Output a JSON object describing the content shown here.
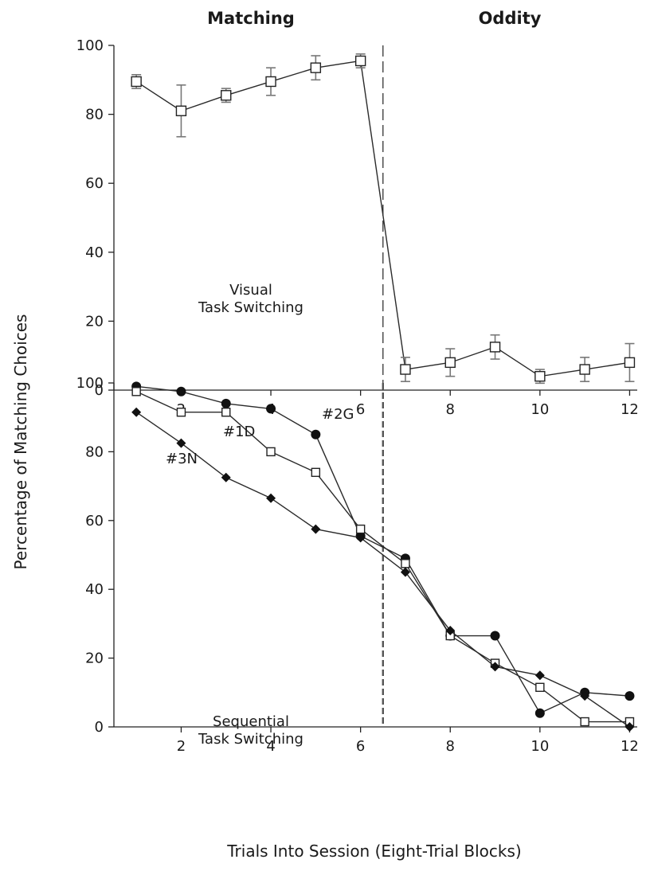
{
  "phase_labels": {
    "left": "Matching",
    "right": "Oddity"
  },
  "ylabel": "Percentage of Matching Choices",
  "xlabel": "Trials Into Session (Eight-Trial Blocks)",
  "chart_data": [
    {
      "type": "line",
      "panel": "top",
      "annotation": [
        "Visual",
        "Task Switching"
      ],
      "xlim": [
        0.5,
        12.5
      ],
      "ylim": [
        0,
        100
      ],
      "x_ticks": [
        2,
        4,
        6,
        8,
        10,
        12
      ],
      "y_ticks": [
        0,
        20,
        40,
        60,
        80,
        100
      ],
      "divider_x": 6.5,
      "x": [
        1,
        2,
        3,
        4,
        5,
        6,
        7,
        8,
        9,
        10,
        11,
        12
      ],
      "series": [
        {
          "marker": "open-square",
          "values": [
            89.5,
            81,
            85.5,
            89.5,
            93.5,
            95.5,
            6,
            8,
            12.5,
            4,
            6,
            8
          ],
          "error": [
            2,
            7.5,
            2,
            4,
            3.5,
            2,
            3.5,
            4,
            3.5,
            2,
            3.5,
            5.5
          ]
        }
      ]
    },
    {
      "type": "line",
      "panel": "bottom",
      "annotation": [
        "Sequential",
        "Task Switching"
      ],
      "xlim": [
        0.5,
        12.5
      ],
      "ylim": [
        0,
        100
      ],
      "x_ticks": [
        2,
        4,
        6,
        8,
        10,
        12
      ],
      "y_ticks": [
        0,
        20,
        40,
        60,
        80,
        100
      ],
      "divider_x": 6.5,
      "x": [
        1,
        2,
        3,
        4,
        5,
        6,
        7,
        8,
        9,
        10,
        11,
        12
      ],
      "series": [
        {
          "name": "#2G",
          "marker": "filled-circle",
          "values": [
            99,
            97.5,
            94,
            92.5,
            85,
            55.5,
            49,
            26.5,
            26.5,
            4,
            10,
            9
          ]
        },
        {
          "name": "#1D",
          "marker": "open-square",
          "values": [
            97.5,
            91.5,
            91.5,
            80,
            74,
            57.5,
            47.5,
            26.5,
            18.5,
            11.5,
            1.5,
            1.5
          ]
        },
        {
          "name": "#3N",
          "marker": "filled-diamond",
          "values": [
            91.5,
            82.5,
            72.5,
            66.5,
            57.5,
            55,
            45,
            28,
            17.5,
            15,
            9,
            0
          ]
        }
      ]
    }
  ]
}
